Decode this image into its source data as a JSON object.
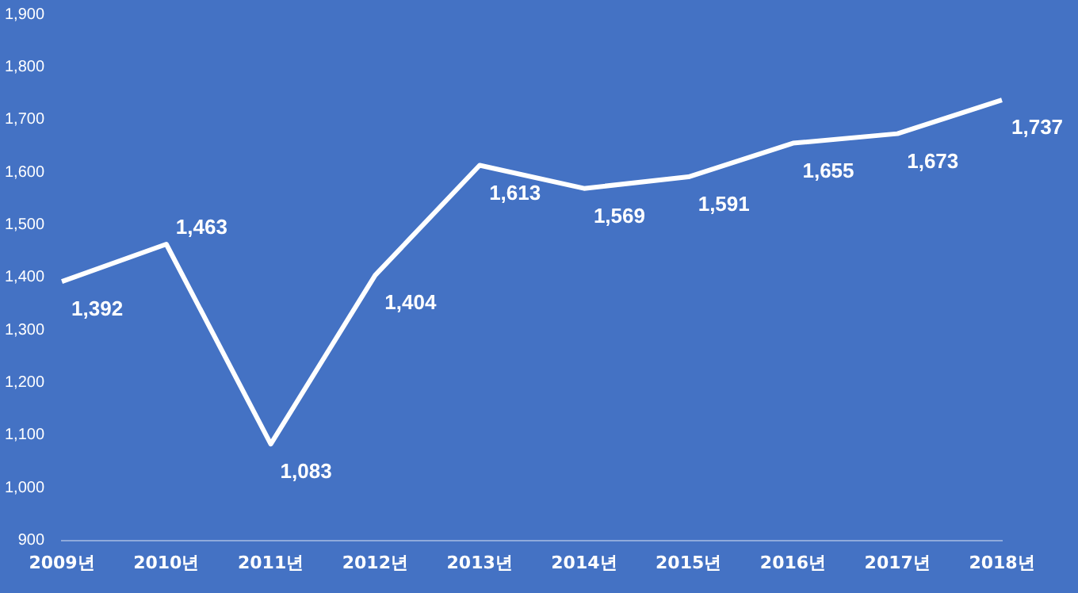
{
  "chart_data": {
    "type": "line",
    "categories": [
      "2009년",
      "2010년",
      "2011년",
      "2012년",
      "2013년",
      "2014년",
      "2015년",
      "2016년",
      "2017년",
      "2018년"
    ],
    "series": [
      {
        "color": "#ffffff",
        "values": [
          1392,
          1463,
          1083,
          1404,
          1613,
          1569,
          1591,
          1655,
          1673,
          1737
        ]
      }
    ],
    "value_labels": [
      "1,392",
      "1,463",
      "1,083",
      "1,404",
      "1,613",
      "1,569",
      "1,591",
      "1,655",
      "1,673",
      "1,737"
    ],
    "ylim": [
      900,
      1900
    ],
    "yticks": [
      {
        "value": 900,
        "label": "900"
      },
      {
        "value": 1000,
        "label": "1,000"
      },
      {
        "value": 1100,
        "label": "1,100"
      },
      {
        "value": 1200,
        "label": "1,200"
      },
      {
        "value": 1300,
        "label": "1,300"
      },
      {
        "value": 1400,
        "label": "1,400"
      },
      {
        "value": 1500,
        "label": "1,500"
      },
      {
        "value": 1600,
        "label": "1,600"
      },
      {
        "value": 1700,
        "label": "1,700"
      },
      {
        "value": 1800,
        "label": "1,800"
      },
      {
        "value": 1900,
        "label": "1,900"
      }
    ],
    "grid": false,
    "legend": false,
    "marker": "none",
    "line_style": "solid"
  }
}
